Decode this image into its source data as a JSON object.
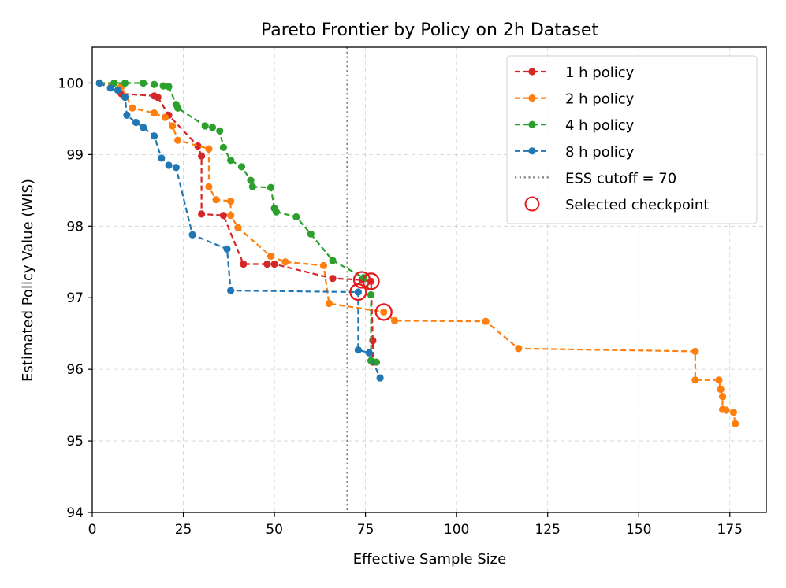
{
  "chart_data": {
    "type": "line",
    "title": "Pareto Frontier by Policy on 2h Dataset",
    "xlabel": "Effective Sample Size",
    "ylabel": "Estimated Policy Value (WIS)",
    "xlim": [
      0,
      185
    ],
    "ylim": [
      94,
      100.5
    ],
    "xticks": [
      0,
      25,
      50,
      75,
      100,
      125,
      150,
      175
    ],
    "yticks": [
      94,
      95,
      96,
      97,
      98,
      99,
      100
    ],
    "grid": true,
    "legend_position": "top-right",
    "cutoff": {
      "label": "ESS cutoff = 70",
      "x": 70,
      "color": "#808080"
    },
    "selected_label": "Selected checkpoint",
    "selected_color": "#e41a1c",
    "series": [
      {
        "name": "1 h policy",
        "color": "#d62728",
        "points": [
          [
            2,
            100.0
          ],
          [
            8,
            99.85
          ],
          [
            17,
            99.82
          ],
          [
            18,
            99.8
          ],
          [
            21,
            99.55
          ],
          [
            29,
            99.12
          ],
          [
            30,
            98.98
          ],
          [
            30,
            98.17
          ],
          [
            36,
            98.15
          ],
          [
            41.5,
            97.47
          ],
          [
            48,
            97.47
          ],
          [
            50,
            97.47
          ],
          [
            66,
            97.27
          ],
          [
            74,
            97.25
          ],
          [
            76.5,
            97.23
          ],
          [
            77,
            96.4
          ],
          [
            77,
            96.1
          ]
        ],
        "selected": [
          [
            74,
            97.25
          ],
          [
            76.5,
            97.23
          ]
        ]
      },
      {
        "name": "2 h policy",
        "color": "#ff7f0e",
        "points": [
          [
            2,
            100.0
          ],
          [
            8,
            99.95
          ],
          [
            11,
            99.65
          ],
          [
            17,
            99.58
          ],
          [
            20,
            99.52
          ],
          [
            22,
            99.4
          ],
          [
            23.5,
            99.2
          ],
          [
            32,
            99.08
          ],
          [
            32,
            98.55
          ],
          [
            34,
            98.37
          ],
          [
            38,
            98.35
          ],
          [
            38,
            98.15
          ],
          [
            40,
            97.98
          ],
          [
            49,
            97.58
          ],
          [
            53,
            97.5
          ],
          [
            63.5,
            97.45
          ],
          [
            65,
            96.92
          ],
          [
            80,
            96.8
          ],
          [
            83,
            96.68
          ],
          [
            108,
            96.67
          ],
          [
            117,
            96.29
          ],
          [
            165.5,
            96.25
          ],
          [
            165.5,
            95.85
          ],
          [
            172,
            95.85
          ],
          [
            172.5,
            95.72
          ],
          [
            173,
            95.62
          ],
          [
            173,
            95.44
          ],
          [
            174,
            95.43
          ],
          [
            176,
            95.4
          ],
          [
            176.5,
            95.24
          ]
        ],
        "selected": [
          [
            80,
            96.8
          ]
        ]
      },
      {
        "name": "4 h policy",
        "color": "#2ca02c",
        "points": [
          [
            2,
            100.0
          ],
          [
            6,
            100.0
          ],
          [
            9,
            100.0
          ],
          [
            14,
            100.0
          ],
          [
            17,
            99.98
          ],
          [
            19.5,
            99.96
          ],
          [
            21,
            99.95
          ],
          [
            23,
            99.7
          ],
          [
            23.5,
            99.65
          ],
          [
            31,
            99.4
          ],
          [
            33,
            99.38
          ],
          [
            35,
            99.33
          ],
          [
            36,
            99.1
          ],
          [
            38,
            98.92
          ],
          [
            41,
            98.83
          ],
          [
            43.5,
            98.64
          ],
          [
            44,
            98.55
          ],
          [
            49,
            98.54
          ],
          [
            50,
            98.25
          ],
          [
            50.5,
            98.2
          ],
          [
            56,
            98.13
          ],
          [
            60,
            97.89
          ],
          [
            66,
            97.52
          ],
          [
            74.5,
            97.28
          ],
          [
            76.5,
            97.04
          ],
          [
            76.5,
            96.12
          ],
          [
            78,
            96.1
          ]
        ],
        "selected": []
      },
      {
        "name": "8 h policy",
        "color": "#1f77b4",
        "points": [
          [
            2,
            100.0
          ],
          [
            5,
            99.93
          ],
          [
            7,
            99.9
          ],
          [
            9,
            99.8
          ],
          [
            9.5,
            99.55
          ],
          [
            12,
            99.45
          ],
          [
            14,
            99.38
          ],
          [
            17,
            99.26
          ],
          [
            19,
            98.95
          ],
          [
            21,
            98.85
          ],
          [
            23,
            98.82
          ],
          [
            27.5,
            97.88
          ],
          [
            37,
            97.68
          ],
          [
            38,
            97.1
          ],
          [
            73,
            97.08
          ],
          [
            73,
            96.27
          ],
          [
            76,
            96.23
          ],
          [
            79,
            95.88
          ]
        ],
        "selected": [
          [
            73,
            97.08
          ]
        ]
      }
    ]
  }
}
